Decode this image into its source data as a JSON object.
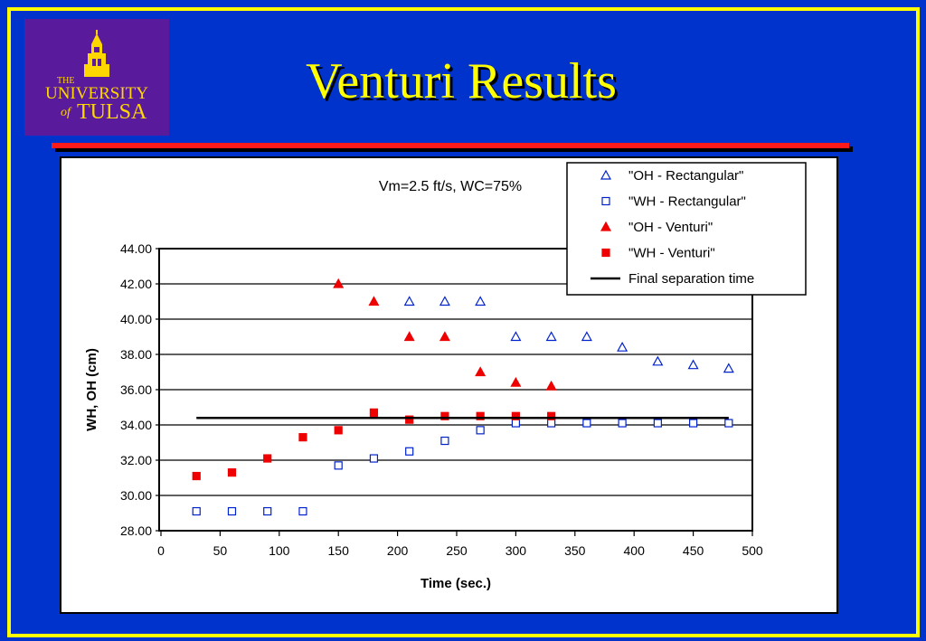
{
  "slide": {
    "title": "Venturi Results",
    "logo": {
      "line1": "THE",
      "line2": "UNIVERSITY",
      "line3": "of",
      "line4": "TULSA"
    }
  },
  "colors": {
    "background": "#0033cc",
    "border": "#ffff00",
    "title": "#ffff00",
    "rule": "#ff1a1a",
    "logo_bg": "#5a1a9c",
    "rectangular": "#0022cc",
    "venturi": "#ee0000"
  },
  "chart_data": {
    "type": "scatter",
    "title": "Vm=2.5 ft/s, WC=75%",
    "xlabel": "Time (sec.)",
    "ylabel": "WH, OH (cm)",
    "xlim": [
      0,
      500
    ],
    "ylim": [
      28,
      44
    ],
    "x_ticks": [
      "0",
      "50",
      "100",
      "150",
      "200",
      "250",
      "300",
      "350",
      "400",
      "450",
      "500"
    ],
    "y_ticks": [
      "28.00",
      "30.00",
      "32.00",
      "34.00",
      "36.00",
      "38.00",
      "40.00",
      "42.00",
      "44.00"
    ],
    "grid": "horizontal",
    "legend_position": "top-right",
    "series": [
      {
        "name": "\"OH - Rectangular\"",
        "marker": "open-triangle",
        "color": "#0022cc",
        "x": [
          210,
          240,
          270,
          300,
          330,
          360,
          390,
          420,
          450,
          480
        ],
        "y": [
          41.0,
          41.0,
          41.0,
          39.0,
          39.0,
          39.0,
          38.4,
          37.6,
          37.4,
          37.2
        ]
      },
      {
        "name": "\"WH - Rectangular\"",
        "marker": "open-square",
        "color": "#0022cc",
        "x": [
          30,
          60,
          90,
          120,
          150,
          180,
          210,
          240,
          270,
          300,
          330,
          360,
          390,
          420,
          450,
          480
        ],
        "y": [
          29.1,
          29.1,
          29.1,
          29.1,
          31.7,
          32.1,
          32.5,
          33.1,
          33.7,
          34.1,
          34.1,
          34.1,
          34.1,
          34.1,
          34.1,
          34.1
        ]
      },
      {
        "name": "\"OH - Venturi\"",
        "marker": "filled-triangle",
        "color": "#ee0000",
        "x": [
          150,
          180,
          210,
          240,
          270,
          300,
          330
        ],
        "y": [
          42.0,
          41.0,
          39.0,
          39.0,
          37.0,
          36.4,
          36.2
        ]
      },
      {
        "name": "\"WH - Venturi\"",
        "marker": "filled-square",
        "color": "#ee0000",
        "x": [
          30,
          60,
          90,
          120,
          150,
          180,
          210,
          240,
          270,
          300,
          330
        ],
        "y": [
          31.1,
          31.3,
          32.1,
          33.3,
          33.7,
          34.7,
          34.3,
          34.5,
          34.5,
          34.5,
          34.5
        ]
      },
      {
        "name": "Final separation time",
        "marker": "line",
        "color": "#000000",
        "x": [
          30,
          480
        ],
        "y": [
          34.4,
          34.4
        ]
      }
    ]
  }
}
